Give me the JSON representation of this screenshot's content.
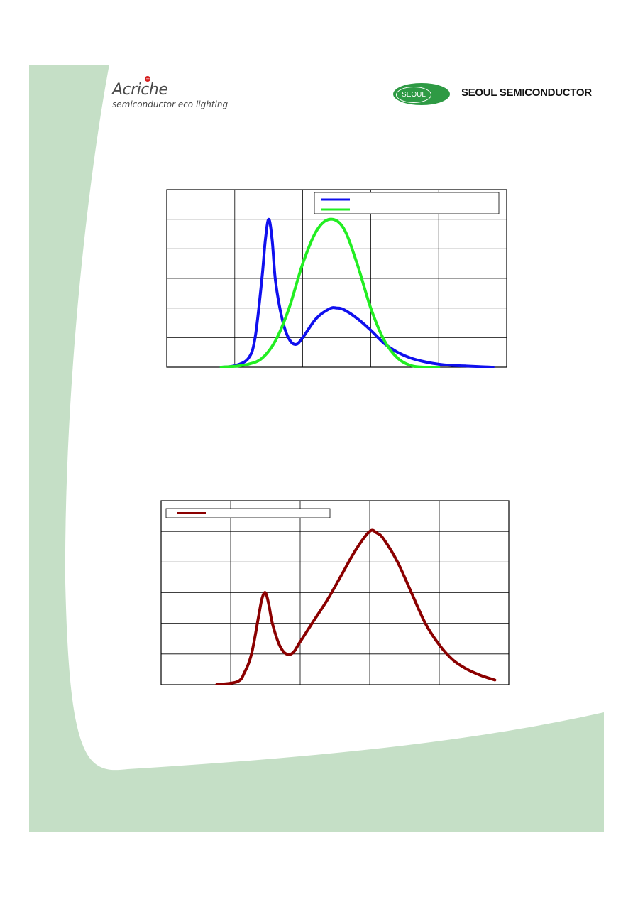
{
  "header": {
    "brand_left": "Acriche",
    "brand_left_tagline": "semiconductor eco lighting",
    "brand_right_badge": "SEOUL",
    "brand_right_name": "SEOUL SEMICONDUCTOR"
  },
  "colors": {
    "page_background_band": "#c5dfc6",
    "brand_green": "#2e9a44",
    "gridline": "#000000"
  },
  "chart_data": [
    {
      "type": "line",
      "title": "",
      "xlabel": "",
      "ylabel": "",
      "grid": true,
      "grid_divisions": {
        "x": 5,
        "y": 6
      },
      "xlim": [
        0,
        5
      ],
      "ylim": [
        0,
        6
      ],
      "legend": {
        "placement": "top-right",
        "entries": [
          "",
          ""
        ]
      },
      "series": [
        {
          "color": "#1010ee",
          "x": [
            0.8,
            1.0,
            1.2,
            1.3,
            1.4,
            1.45,
            1.5,
            1.55,
            1.6,
            1.7,
            1.8,
            1.9,
            2.0,
            2.2,
            2.4,
            2.5,
            2.6,
            2.8,
            3.0,
            3.2,
            3.4,
            3.6,
            3.8,
            4.0,
            4.2,
            4.4,
            4.6,
            4.8
          ],
          "y": [
            0.0,
            0.05,
            0.3,
            1.0,
            3.0,
            4.3,
            5.0,
            4.3,
            2.9,
            1.6,
            0.95,
            0.77,
            1.0,
            1.65,
            1.98,
            2.0,
            1.95,
            1.65,
            1.25,
            0.8,
            0.5,
            0.3,
            0.18,
            0.1,
            0.06,
            0.04,
            0.02,
            0.0
          ]
        },
        {
          "color": "#22ee22",
          "x": [
            0.8,
            1.0,
            1.2,
            1.4,
            1.6,
            1.8,
            2.0,
            2.2,
            2.4,
            2.6,
            2.8,
            3.0,
            3.2,
            3.4,
            3.6,
            3.8,
            4.0
          ],
          "y": [
            0.0,
            0.03,
            0.1,
            0.3,
            0.9,
            2.0,
            3.5,
            4.6,
            5.0,
            4.7,
            3.5,
            2.0,
            0.9,
            0.3,
            0.05,
            0.0,
            0.0
          ]
        }
      ]
    },
    {
      "type": "line",
      "title": "",
      "xlabel": "",
      "ylabel": "",
      "grid": true,
      "grid_divisions": {
        "x": 5,
        "y": 6
      },
      "xlim": [
        0,
        5
      ],
      "ylim": [
        0,
        6
      ],
      "legend": {
        "placement": "top-left",
        "entries": [
          ""
        ]
      },
      "series": [
        {
          "color": "#8b0000",
          "x": [
            0.8,
            1.1,
            1.2,
            1.3,
            1.4,
            1.45,
            1.5,
            1.55,
            1.6,
            1.7,
            1.8,
            1.9,
            2.0,
            2.2,
            2.4,
            2.6,
            2.8,
            3.0,
            3.1,
            3.2,
            3.4,
            3.6,
            3.8,
            4.0,
            4.2,
            4.4,
            4.6,
            4.8
          ],
          "y": [
            0.0,
            0.1,
            0.4,
            1.0,
            2.2,
            2.8,
            3.0,
            2.6,
            2.0,
            1.3,
            1.0,
            1.05,
            1.4,
            2.1,
            2.8,
            3.6,
            4.4,
            5.0,
            4.95,
            4.75,
            4.0,
            3.0,
            2.0,
            1.3,
            0.8,
            0.5,
            0.3,
            0.15
          ]
        }
      ]
    }
  ]
}
